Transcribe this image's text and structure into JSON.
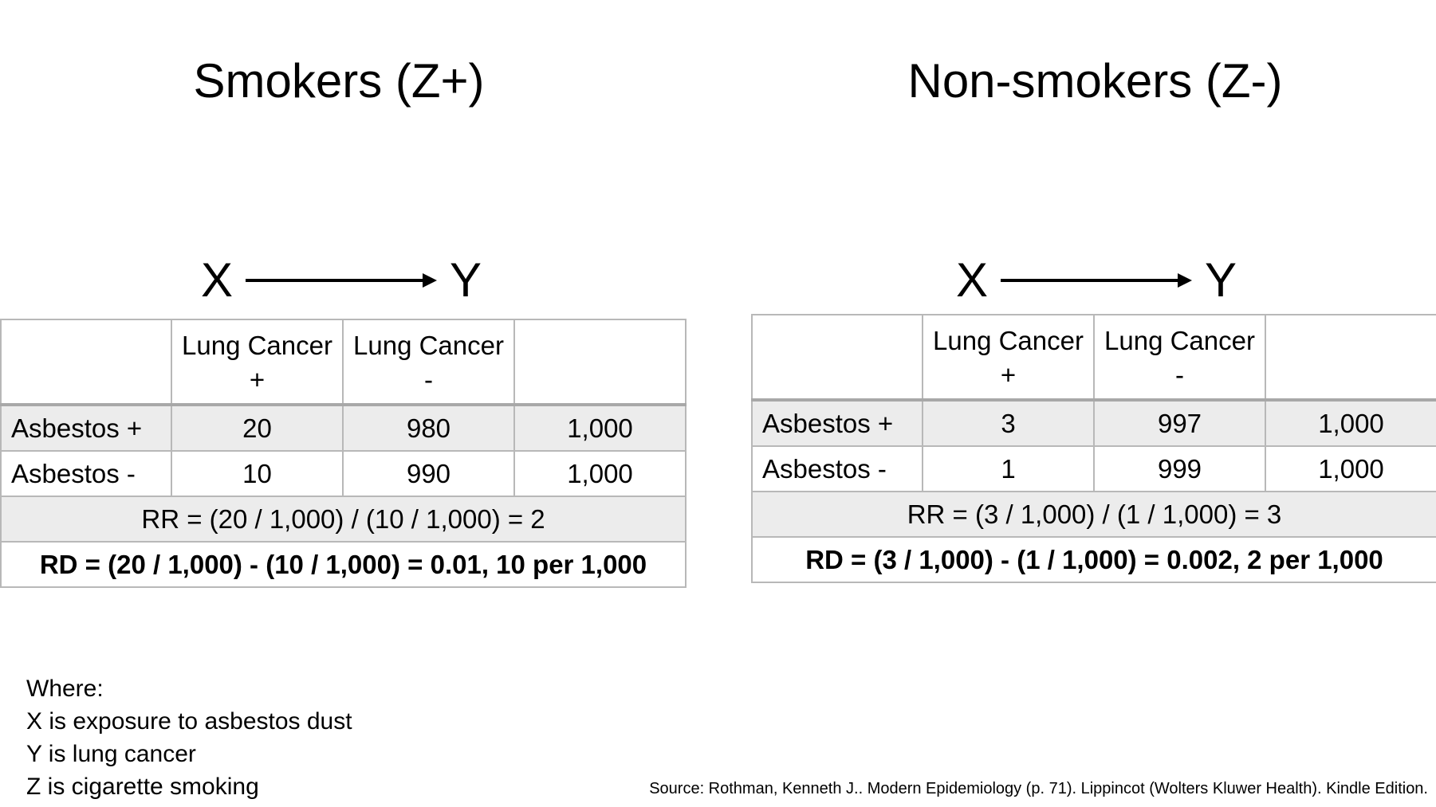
{
  "panels": [
    {
      "title": "Smokers (Z+)",
      "dag": {
        "from": "X",
        "to": "Y"
      },
      "table": {
        "header": [
          "",
          "Lung Cancer\n+",
          "Lung Cancer\n-",
          ""
        ],
        "rows": [
          {
            "label": "Asbestos +",
            "cancer_pos": "20",
            "cancer_neg": "980",
            "total": "1,000"
          },
          {
            "label": "Asbestos -",
            "cancer_pos": "10",
            "cancer_neg": "990",
            "total": "1,000"
          }
        ],
        "rr": "RR = (20 / 1,000) / (10 / 1,000) = 2",
        "rd": "RD = (20 / 1,000) - (10 / 1,000) = 0.01, 10 per 1,000"
      }
    },
    {
      "title": "Non-smokers (Z-)",
      "dag": {
        "from": "X",
        "to": "Y"
      },
      "table": {
        "header": [
          "",
          "Lung Cancer\n+",
          "Lung Cancer\n-",
          ""
        ],
        "rows": [
          {
            "label": "Asbestos +",
            "cancer_pos": "3",
            "cancer_neg": "997",
            "total": "1,000"
          },
          {
            "label": "Asbestos -",
            "cancer_pos": "1",
            "cancer_neg": "999",
            "total": "1,000"
          }
        ],
        "rr": "RR = (3 / 1,000) / (1 / 1,000) = 3",
        "rd": "RD = (3 / 1,000) - (1 / 1,000) = 0.002, 2 per 1,000"
      }
    }
  ],
  "legend": {
    "heading": "Where:",
    "lines": [
      "X is exposure to asbestos dust",
      "Y is lung cancer",
      "Z is cigarette smoking"
    ]
  },
  "source": "Source: Rothman, Kenneth J.. Modern Epidemiology (p. 71). Lippincot (Wolters Kluwer Health). Kindle Edition.",
  "colors": {
    "shade": "#ececec",
    "border": "#b8b8b8",
    "text": "#000000"
  }
}
